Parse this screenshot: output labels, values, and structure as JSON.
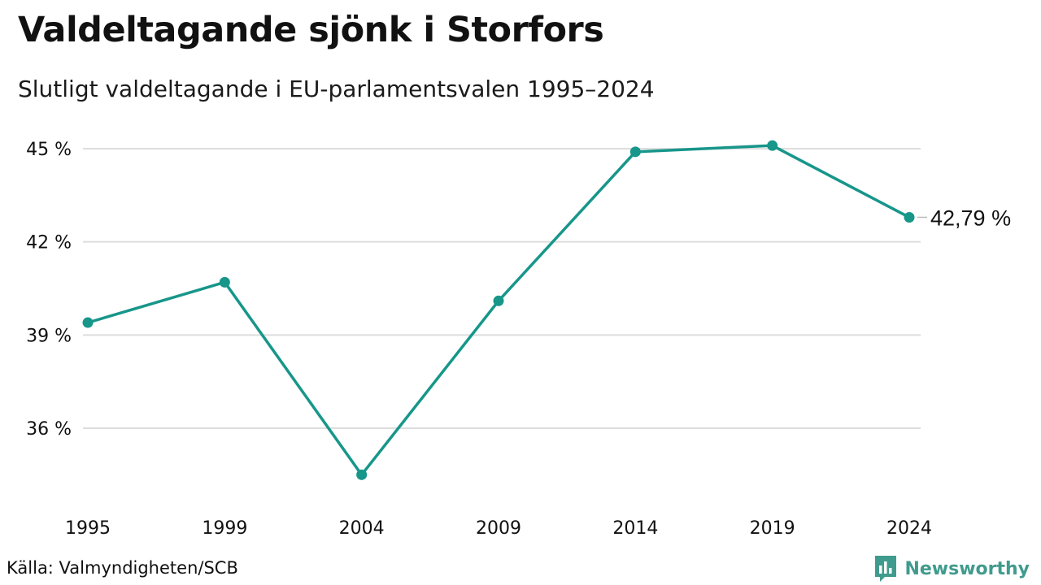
{
  "title": "Valdeltagande sjönk i Storfors",
  "subtitle": "Slutligt valdeltagande i EU-parlamentsvalen 1995–2024",
  "source": "Källa: Valmyndigheten/SCB",
  "brand": {
    "name": "Newsworthy",
    "logo_icon": "bar-chart-speech-bubble-icon",
    "color": "#3f9b8d"
  },
  "colors": {
    "line": "#17968a",
    "grid": "#dddddd",
    "text": "#111111"
  },
  "chart_data": {
    "type": "line",
    "title": "Valdeltagande sjönk i Storfors",
    "subtitle": "Slutligt valdeltagande i EU-parlamentsvalen 1995–2024",
    "x": [
      "1995",
      "1999",
      "2004",
      "2009",
      "2014",
      "2019",
      "2024"
    ],
    "series": [
      {
        "values": [
          39.4,
          40.7,
          34.5,
          40.1,
          44.9,
          45.1,
          42.79
        ]
      }
    ],
    "y_ticks": [
      36,
      39,
      42,
      45
    ],
    "y_tick_labels": [
      "36 %",
      "39 %",
      "42 %",
      "45 %"
    ],
    "ylim": [
      34,
      45.5
    ],
    "end_label": "42,79 %",
    "grid": true,
    "legend": "none",
    "xlabel": "",
    "ylabel": ""
  }
}
